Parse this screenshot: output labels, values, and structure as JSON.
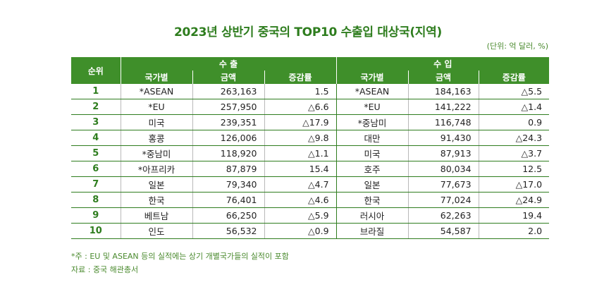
{
  "title": "2023년 상반기 중국의 TOP10 수출입 대상국(지역)",
  "unit": "(단위: 억 달러, %)",
  "headers": {
    "rank": "순위",
    "export": "수 출",
    "import": "수 입",
    "country": "국가별",
    "amount": "금액",
    "change": "증감률"
  },
  "rows": [
    {
      "rank": "1",
      "ex_country": "*ASEAN",
      "ex_amount": "263,163",
      "ex_change": "1.5",
      "im_country": "*ASEAN",
      "im_amount": "184,163",
      "im_change": "△5.5"
    },
    {
      "rank": "2",
      "ex_country": "*EU",
      "ex_amount": "257,950",
      "ex_change": "△6.6",
      "im_country": "*EU",
      "im_amount": "141,222",
      "im_change": "△1.4"
    },
    {
      "rank": "3",
      "ex_country": "미국",
      "ex_amount": "239,351",
      "ex_change": "△17.9",
      "im_country": "*중남미",
      "im_amount": "116,748",
      "im_change": "0.9"
    },
    {
      "rank": "4",
      "ex_country": "홍콩",
      "ex_amount": "126,006",
      "ex_change": "△9.8",
      "im_country": "대만",
      "im_amount": "91,430",
      "im_change": "△24.3"
    },
    {
      "rank": "5",
      "ex_country": "*중남미",
      "ex_amount": "118,920",
      "ex_change": "△1.1",
      "im_country": "미국",
      "im_amount": "87,913",
      "im_change": "△3.7"
    },
    {
      "rank": "6",
      "ex_country": "*아프리카",
      "ex_amount": "87,879",
      "ex_change": "15.4",
      "im_country": "호주",
      "im_amount": "80,034",
      "im_change": "12.5"
    },
    {
      "rank": "7",
      "ex_country": "일본",
      "ex_amount": "79,340",
      "ex_change": "△4.7",
      "im_country": "일본",
      "im_amount": "77,673",
      "im_change": "△17.0"
    },
    {
      "rank": "8",
      "ex_country": "한국",
      "ex_amount": "76,401",
      "ex_change": "△4.6",
      "im_country": "한국",
      "im_amount": "77,024",
      "im_change": "△24.9"
    },
    {
      "rank": "9",
      "ex_country": "베트남",
      "ex_amount": "66,250",
      "ex_change": "△5.9",
      "im_country": "러시아",
      "im_amount": "62,263",
      "im_change": "19.4"
    },
    {
      "rank": "10",
      "ex_country": "인도",
      "ex_amount": "56,532",
      "ex_change": "△0.9",
      "im_country": "브라질",
      "im_amount": "54,587",
      "im_change": "2.0"
    }
  ],
  "note": "*주 : EU 및 ASEAN 등의 실적에는 상기 개별국가들의 실적이 포함",
  "source": "자료 : 중국 해관총서",
  "colors": {
    "header_green": "#3f8f2a",
    "title_green": "#2e7d1e"
  }
}
